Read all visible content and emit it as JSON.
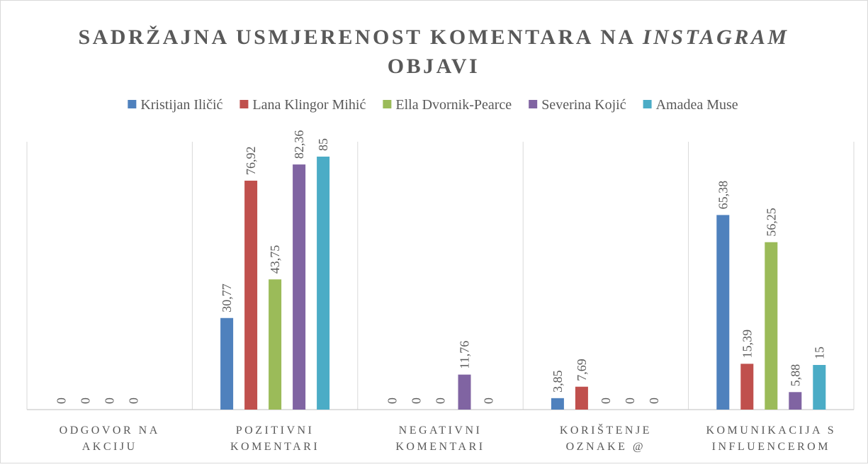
{
  "chart_data": {
    "type": "bar",
    "title": [
      "SADRŽAJNA USMJERENOST KOMENTARA NA",
      "INSTAGRAM",
      "OBJAVI"
    ],
    "categories": [
      "ODGOVOR NA AKCIJU",
      "POZITIVNI KOMENTARI",
      "NEGATIVNI KOMENTARI",
      "KORIŠTENJE OZNAKE @",
      "KOMUNIKACIJA S INFLUENCEROM"
    ],
    "series": [
      {
        "name": "Kristijan Iličić",
        "color": "#4f81bd",
        "values": [
          0,
          30.77,
          0,
          3.85,
          65.38
        ],
        "value_labels": [
          "0",
          "30,77",
          "0",
          "3,85",
          "65,38"
        ]
      },
      {
        "name": "Lana Klingor Mihić",
        "color": "#c0504d",
        "values": [
          0,
          76.92,
          0,
          7.69,
          15.39
        ],
        "value_labels": [
          "0",
          "76,92",
          "0",
          "7,69",
          "15,39"
        ]
      },
      {
        "name": "Ella Dvornik-Pearce",
        "color": "#9bbb59",
        "values": [
          0,
          43.75,
          0,
          0,
          56.25
        ],
        "value_labels": [
          "0",
          "43,75",
          "0",
          "0",
          "56,25"
        ]
      },
      {
        "name": "Severina Kojić",
        "color": "#8064a2",
        "values": [
          0,
          82.36,
          11.76,
          0,
          5.88
        ],
        "value_labels": [
          "0",
          "82,36",
          "11,76",
          "0",
          "5,88"
        ]
      },
      {
        "name": "Amadea Muse",
        "color": "#4bacc6",
        "values": [
          null,
          85,
          0,
          0,
          15
        ],
        "value_labels": [
          null,
          "85",
          "0",
          "0",
          "15"
        ]
      }
    ],
    "ylim": [
      0,
      90
    ],
    "grid": true
  }
}
